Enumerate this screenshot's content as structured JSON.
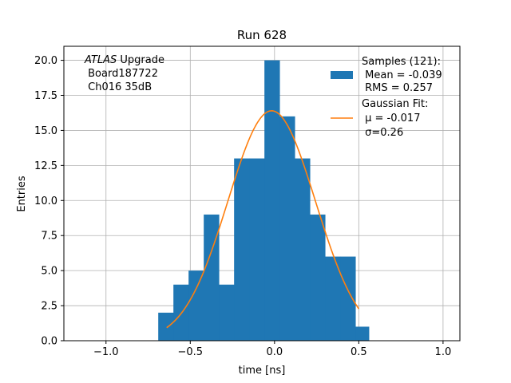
{
  "chart_data": {
    "type": "bar",
    "title": "Run 628",
    "xlabel": "time [ns]",
    "ylabel": "Entries",
    "xlim": [
      -1.25,
      1.1
    ],
    "ylim": [
      0,
      21
    ],
    "xticks": [
      -1.0,
      -0.5,
      0.0,
      0.5,
      1.0
    ],
    "xtick_labels": [
      "−1.0",
      "−0.5",
      "0.0",
      "0.5",
      "1.0"
    ],
    "yticks": [
      0.0,
      2.5,
      5.0,
      7.5,
      10.0,
      12.5,
      15.0,
      17.5,
      20.0
    ],
    "ytick_labels": [
      "0.0",
      "2.5",
      "5.0",
      "7.5",
      "10.0",
      "12.5",
      "15.0",
      "17.5",
      "20.0"
    ],
    "grid": true,
    "histogram": {
      "bin_edges": [
        -0.69,
        -0.6,
        -0.51,
        -0.42,
        -0.33,
        -0.24,
        -0.15,
        -0.06,
        0.03,
        0.12,
        0.21,
        0.3,
        0.39,
        0.48,
        0.56
      ],
      "counts": [
        2,
        4,
        5,
        9,
        4,
        13,
        13,
        20,
        16,
        13,
        9,
        6,
        6,
        1
      ],
      "color": "#1f77b4"
    },
    "fit": {
      "mu": -0.017,
      "sigma": 0.26,
      "amplitude": 16.4,
      "x_range": [
        -0.64,
        0.5
      ],
      "color": "#ff7f0e"
    },
    "legend": {
      "placement": "top-right",
      "entries": [
        {
          "line1": "Samples (121):",
          "line2": " Mean = -0.039",
          "line3": " RMS = 0.257"
        },
        {
          "line1": "Gaussian Fit:",
          "line2": " μ = -0.017",
          "line3": " σ=0.26"
        }
      ]
    },
    "annotation": {
      "line1_italic": "ATLAS",
      "line1_rest": " Upgrade",
      "line2": " Board187722",
      "line3": " Ch016 35dB"
    }
  }
}
